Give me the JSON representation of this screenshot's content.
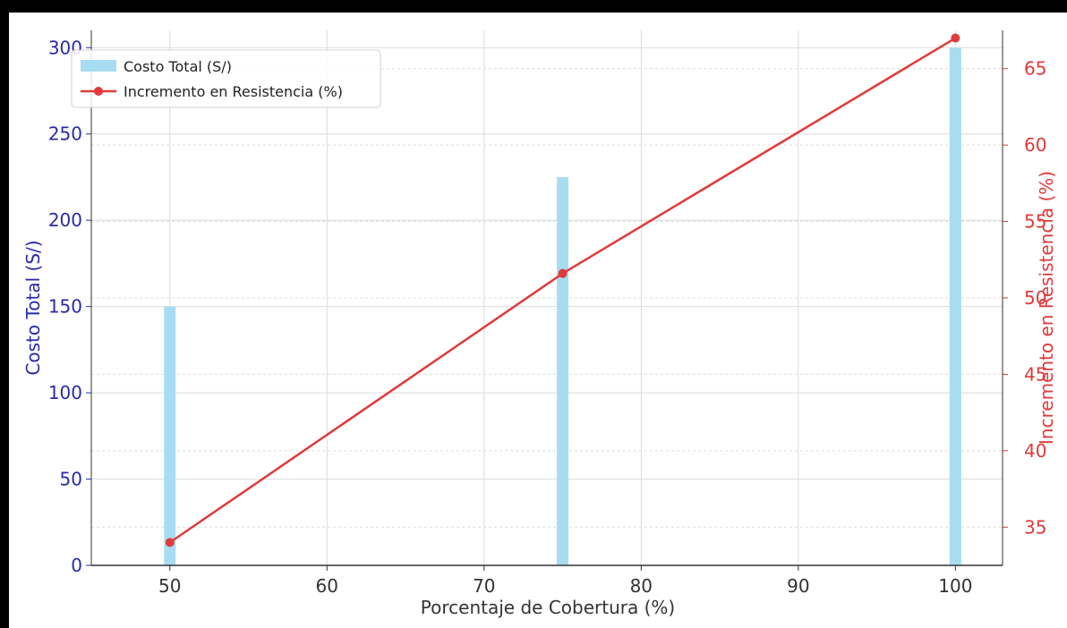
{
  "colors": {
    "bar": "#a8dcf0",
    "line": "#e03a3a",
    "left_axis": "#2a2aa8",
    "right_axis": "#e03a3a",
    "grid": "#dcdcdc",
    "axis_text": "#333333"
  },
  "chart_data": {
    "type": "bar",
    "title": "",
    "xlabel": "Porcentaje de Cobertura (%)",
    "ylabel": "Costo Total (S/)",
    "y2label": "Incremento en Resistencia (%)",
    "xlim": [
      45,
      103
    ],
    "ylim": [
      0,
      310
    ],
    "y2lim": [
      32.5,
      67.5
    ],
    "x_ticks": [
      50,
      60,
      70,
      80,
      90,
      100
    ],
    "y_ticks": [
      0,
      50,
      100,
      150,
      200,
      250,
      300
    ],
    "y2_ticks": [
      35,
      40,
      45,
      50,
      55,
      60,
      65
    ],
    "grid": true,
    "legend_position": "top-left",
    "x": [
      50,
      75,
      100
    ],
    "series": [
      {
        "name": "Costo Total (S/)",
        "type": "bar",
        "axis": "left",
        "values": [
          150,
          225,
          300
        ]
      },
      {
        "name": "Incremento en Resistencia (%)",
        "type": "line",
        "axis": "right",
        "marker": "circle",
        "values": [
          34,
          51.6,
          67
        ]
      }
    ]
  }
}
